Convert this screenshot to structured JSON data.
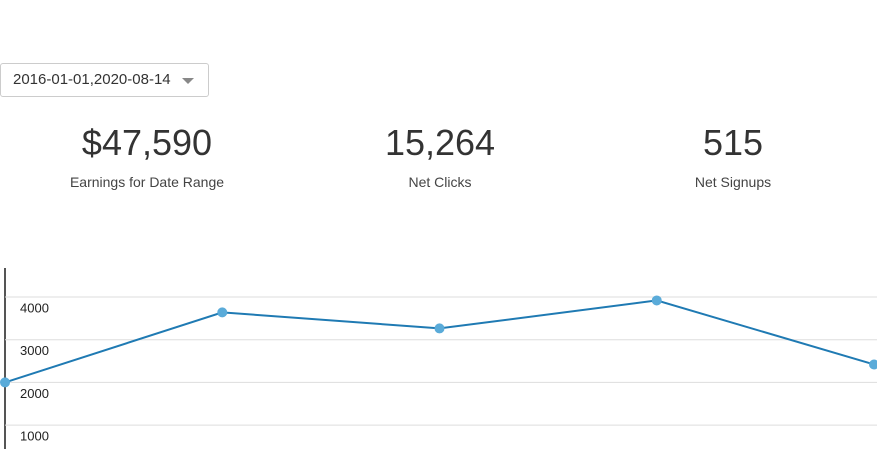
{
  "date_range": "2016-01-01,2020-08-14",
  "stats": [
    {
      "value": "$47,590",
      "label": "Earnings for Date Range"
    },
    {
      "value": "15,264",
      "label": "Net Clicks"
    },
    {
      "value": "515",
      "label": "Net Signups"
    }
  ],
  "chart_data": {
    "type": "line",
    "categories": [
      null,
      null,
      null,
      null,
      null
    ],
    "values": [
      2000,
      3640,
      3265,
      3920,
      2420
    ],
    "color": "#1f7ab3",
    "point_color": "#5aabd9",
    "ylim": [
      440,
      4680
    ],
    "yticks": [
      1000,
      2000,
      3000,
      4000
    ],
    "grid": true
  }
}
